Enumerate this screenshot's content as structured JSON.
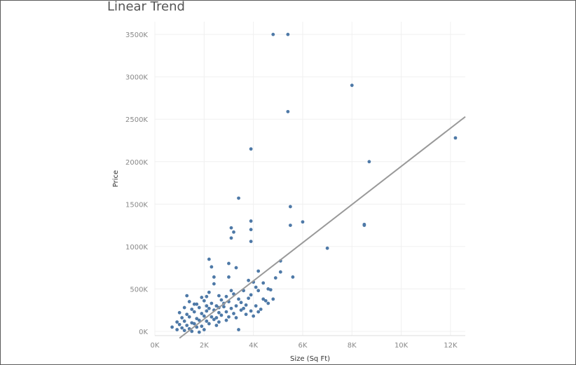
{
  "chart_data": {
    "type": "scatter",
    "title": "Linear Trend",
    "xlabel": "Size (Sq Ft)",
    "ylabel": "Price",
    "xlim": [
      0,
      12600
    ],
    "ylim": [
      -50000,
      3650000
    ],
    "xticks": [
      0,
      2000,
      4000,
      6000,
      8000,
      10000,
      12000
    ],
    "xtick_labels": [
      "0K",
      "2K",
      "4K",
      "6K",
      "8K",
      "10K",
      "12K"
    ],
    "yticks": [
      0,
      500000,
      1000000,
      1500000,
      2000000,
      2500000,
      3000000,
      3500000
    ],
    "ytick_labels": [
      "0K",
      "500K",
      "1000K",
      "1500K",
      "2000K",
      "2500K",
      "3000K",
      "3500K"
    ],
    "grid": true,
    "point_color": "#4e79a7",
    "trend_color": "#999999",
    "trend_line": {
      "x": [
        1000,
        12600
      ],
      "y": [
        -80000,
        2530000
      ]
    },
    "points": [
      [
        4800,
        3500000
      ],
      [
        5400,
        3500000
      ],
      [
        8000,
        2900000
      ],
      [
        5400,
        2590000
      ],
      [
        12200,
        2280000
      ],
      [
        3900,
        2150000
      ],
      [
        8700,
        2000000
      ],
      [
        3400,
        1570000
      ],
      [
        5500,
        1470000
      ],
      [
        3900,
        1300000
      ],
      [
        6000,
        1290000
      ],
      [
        5500,
        1250000
      ],
      [
        8500,
        1260000
      ],
      [
        8500,
        1250000
      ],
      [
        3100,
        1220000
      ],
      [
        3900,
        1200000
      ],
      [
        3200,
        1170000
      ],
      [
        3100,
        1100000
      ],
      [
        3900,
        1060000
      ],
      [
        7000,
        980000
      ],
      [
        2200,
        850000
      ],
      [
        5100,
        830000
      ],
      [
        3000,
        800000
      ],
      [
        2300,
        760000
      ],
      [
        3300,
        750000
      ],
      [
        4200,
        710000
      ],
      [
        5100,
        700000
      ],
      [
        4900,
        630000
      ],
      [
        5600,
        640000
      ],
      [
        2400,
        640000
      ],
      [
        3000,
        640000
      ],
      [
        3800,
        600000
      ],
      [
        4000,
        580000
      ],
      [
        4400,
        570000
      ],
      [
        4100,
        520000
      ],
      [
        4600,
        500000
      ],
      [
        4700,
        490000
      ],
      [
        2400,
        560000
      ],
      [
        3600,
        480000
      ],
      [
        4200,
        480000
      ],
      [
        1300,
        420000
      ],
      [
        1900,
        400000
      ],
      [
        2100,
        410000
      ],
      [
        2600,
        420000
      ],
      [
        3200,
        440000
      ],
      [
        3900,
        430000
      ],
      [
        4800,
        380000
      ],
      [
        4400,
        380000
      ],
      [
        4500,
        360000
      ],
      [
        4600,
        330000
      ],
      [
        1400,
        350000
      ],
      [
        1700,
        320000
      ],
      [
        2000,
        360000
      ],
      [
        2300,
        330000
      ],
      [
        2700,
        370000
      ],
      [
        3000,
        350000
      ],
      [
        3500,
        340000
      ],
      [
        4100,
        300000
      ],
      [
        3700,
        310000
      ],
      [
        3300,
        300000
      ],
      [
        1200,
        280000
      ],
      [
        1500,
        260000
      ],
      [
        1800,
        280000
      ],
      [
        2200,
        270000
      ],
      [
        2500,
        300000
      ],
      [
        2800,
        290000
      ],
      [
        3100,
        270000
      ],
      [
        3500,
        250000
      ],
      [
        3900,
        240000
      ],
      [
        4200,
        230000
      ],
      [
        1000,
        220000
      ],
      [
        1300,
        200000
      ],
      [
        1600,
        230000
      ],
      [
        1900,
        210000
      ],
      [
        2100,
        240000
      ],
      [
        2400,
        250000
      ],
      [
        2600,
        220000
      ],
      [
        2900,
        230000
      ],
      [
        3200,
        210000
      ],
      [
        3700,
        200000
      ],
      [
        1100,
        160000
      ],
      [
        1400,
        170000
      ],
      [
        1700,
        150000
      ],
      [
        2000,
        180000
      ],
      [
        2300,
        170000
      ],
      [
        2500,
        160000
      ],
      [
        2700,
        190000
      ],
      [
        3000,
        170000
      ],
      [
        3300,
        160000
      ],
      [
        4000,
        180000
      ],
      [
        900,
        110000
      ],
      [
        1200,
        120000
      ],
      [
        1500,
        100000
      ],
      [
        1800,
        130000
      ],
      [
        2100,
        120000
      ],
      [
        2400,
        140000
      ],
      [
        2600,
        110000
      ],
      [
        2900,
        130000
      ],
      [
        1000,
        80000
      ],
      [
        1300,
        70000
      ],
      [
        1600,
        90000
      ],
      [
        1900,
        60000
      ],
      [
        2200,
        90000
      ],
      [
        2500,
        70000
      ],
      [
        1100,
        40000
      ],
      [
        1400,
        30000
      ],
      [
        1700,
        50000
      ],
      [
        2000,
        20000
      ],
      [
        900,
        20000
      ],
      [
        700,
        50000
      ],
      [
        1200,
        10000
      ],
      [
        1500,
        0
      ],
      [
        1800,
        -10000
      ],
      [
        3400,
        20000
      ],
      [
        2800,
        330000
      ],
      [
        3400,
        380000
      ],
      [
        3800,
        390000
      ],
      [
        2100,
        300000
      ],
      [
        2600,
        280000
      ],
      [
        3600,
        270000
      ],
      [
        4300,
        260000
      ],
      [
        1600,
        320000
      ],
      [
        2900,
        410000
      ],
      [
        3100,
        480000
      ],
      [
        2200,
        460000
      ]
    ]
  }
}
